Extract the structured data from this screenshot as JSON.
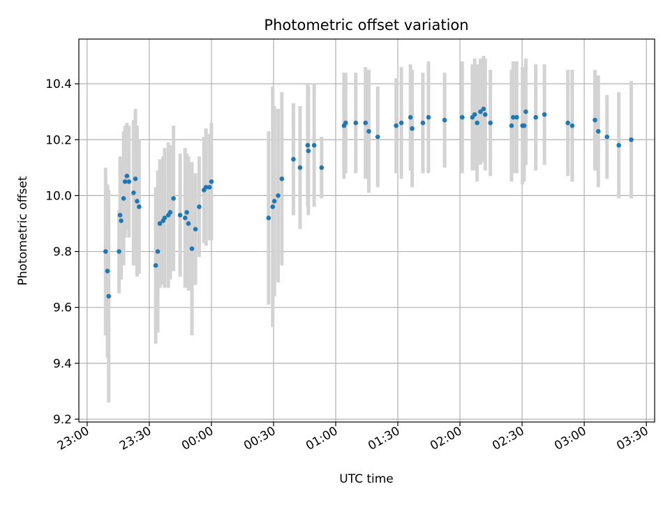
{
  "chart_data": {
    "type": "scatter",
    "title": "Photometric offset variation",
    "xlabel": "UTC time",
    "ylabel": "Photometric offset",
    "x_tick_labels": [
      "23:00",
      "23:30",
      "00:00",
      "00:30",
      "01:00",
      "01:30",
      "02:00",
      "02:30",
      "03:00",
      "03:30"
    ],
    "x_tick_minutes": [
      0,
      30,
      60,
      90,
      120,
      150,
      180,
      210,
      240,
      270
    ],
    "xlim_minutes": [
      -4,
      274
    ],
    "y_ticks": [
      9.2,
      9.4,
      9.6,
      9.8,
      10.0,
      10.2,
      10.4
    ],
    "ylim": [
      9.19,
      10.56
    ],
    "grid": true,
    "colors": {
      "point": "#1f77b4",
      "errorbar": "#d3d3d3",
      "grid": "#b0b0b0"
    },
    "points": [
      [
        8.9,
        9.8,
        0.3
      ],
      [
        9.8,
        9.73,
        0.31
      ],
      [
        10.4,
        9.64,
        0.38
      ],
      [
        15.4,
        9.8,
        0.15
      ],
      [
        15.9,
        9.93,
        0.21
      ],
      [
        16.4,
        9.91,
        0.21
      ],
      [
        17.6,
        9.99,
        0.24
      ],
      [
        18.3,
        10.05,
        0.2
      ],
      [
        19.2,
        10.07,
        0.19
      ],
      [
        20.2,
        10.05,
        0.2
      ],
      [
        22.4,
        10.01,
        0.26
      ],
      [
        23.3,
        10.06,
        0.25
      ],
      [
        24.1,
        9.98,
        0.27
      ],
      [
        25.1,
        9.96,
        0.24
      ],
      [
        33.1,
        9.75,
        0.28
      ],
      [
        34.1,
        9.8,
        0.29
      ],
      [
        35.1,
        9.9,
        0.23
      ],
      [
        36.7,
        9.91,
        0.23
      ],
      [
        37.4,
        9.92,
        0.25
      ],
      [
        39.2,
        9.93,
        0.26
      ],
      [
        40.1,
        9.94,
        0.24
      ],
      [
        41.7,
        9.99,
        0.26
      ],
      [
        44.9,
        9.93,
        0.22
      ],
      [
        47.3,
        9.92,
        0.25
      ],
      [
        48.1,
        9.94,
        0.21
      ],
      [
        48.9,
        9.9,
        0.24
      ],
      [
        50.6,
        9.81,
        0.31
      ],
      [
        52.3,
        9.88,
        0.2
      ],
      [
        54.1,
        9.96,
        0.18
      ],
      [
        56.4,
        10.02,
        0.19
      ],
      [
        57.4,
        10.03,
        0.21
      ],
      [
        59.1,
        10.03,
        0.19
      ],
      [
        60.0,
        10.05,
        0.21
      ],
      [
        87.6,
        9.92,
        0.31
      ],
      [
        89.6,
        9.96,
        0.43
      ],
      [
        90.4,
        9.98,
        0.34
      ],
      [
        92.2,
        10.0,
        0.31
      ],
      [
        94.0,
        10.06,
        0.31
      ],
      [
        99.6,
        10.13,
        0.2
      ],
      [
        102.8,
        10.1,
        0.22
      ],
      [
        106.5,
        10.18,
        0.22
      ],
      [
        106.8,
        10.16,
        0.23
      ],
      [
        109.6,
        10.18,
        0.22
      ],
      [
        113.2,
        10.1,
        0.11
      ],
      [
        124.0,
        10.25,
        0.19
      ],
      [
        124.8,
        10.26,
        0.18
      ],
      [
        129.7,
        10.26,
        0.18
      ],
      [
        134.4,
        10.26,
        0.2
      ],
      [
        136.0,
        10.23,
        0.22
      ],
      [
        140.3,
        10.21,
        0.18
      ],
      [
        149.2,
        10.25,
        0.17
      ],
      [
        151.7,
        10.26,
        0.2
      ],
      [
        156.1,
        10.28,
        0.19
      ],
      [
        156.9,
        10.24,
        0.21
      ],
      [
        162.1,
        10.26,
        0.18
      ],
      [
        164.8,
        10.28,
        0.2
      ],
      [
        172.6,
        10.27,
        0.17
      ],
      [
        181.1,
        10.28,
        0.2
      ],
      [
        186.0,
        10.28,
        0.19
      ],
      [
        187.1,
        10.29,
        0.2
      ],
      [
        188.3,
        10.26,
        0.21
      ],
      [
        189.9,
        10.3,
        0.19
      ],
      [
        191.4,
        10.31,
        0.19
      ],
      [
        192.2,
        10.29,
        0.2
      ],
      [
        194.7,
        10.26,
        0.19
      ],
      [
        204.9,
        10.25,
        0.2
      ],
      [
        205.7,
        10.28,
        0.2
      ],
      [
        207.4,
        10.28,
        0.2
      ],
      [
        210.2,
        10.25,
        0.21
      ],
      [
        211.0,
        10.25,
        0.2
      ],
      [
        211.8,
        10.3,
        0.19
      ],
      [
        216.6,
        10.28,
        0.19
      ],
      [
        220.8,
        10.29,
        0.18
      ],
      [
        232.1,
        10.26,
        0.19
      ],
      [
        234.2,
        10.25,
        0.2
      ],
      [
        245.2,
        10.27,
        0.18
      ],
      [
        246.8,
        10.23,
        0.2
      ],
      [
        251.0,
        10.21,
        0.15
      ],
      [
        256.7,
        10.18,
        0.19
      ],
      [
        262.7,
        10.2,
        0.21
      ]
    ]
  }
}
